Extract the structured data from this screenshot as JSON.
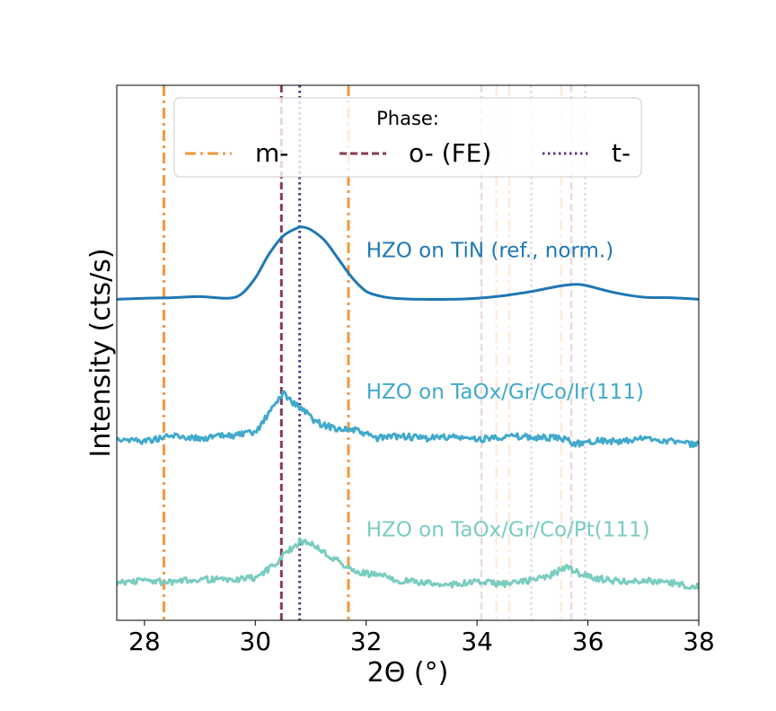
{
  "chart_data": {
    "type": "line",
    "xlabel": "2Θ (°)",
    "ylabel": "Intensity (cts/s)",
    "xlim": [
      27.5,
      38
    ],
    "ylim": [
      0,
      1
    ],
    "xticks": [
      "28",
      "30",
      "32",
      "34",
      "36",
      "38"
    ],
    "yticks": [],
    "grid": false,
    "legend": {
      "title": "Phase:",
      "position": "top-center",
      "entries": [
        {
          "label": "m-",
          "color": "#f5973a",
          "style": "dashdot"
        },
        {
          "label": "o- (FE)",
          "color": "#8b3a5a",
          "style": "dashed"
        },
        {
          "label": "t-",
          "color": "#5a3a82",
          "style": "dotted"
        }
      ]
    },
    "reference_lines": [
      {
        "phase": "m-",
        "x": 28.35,
        "strength": "strong",
        "color": "#f5973a",
        "style": "dashdot"
      },
      {
        "phase": "m-",
        "x": 31.68,
        "strength": "strong",
        "color": "#f5973a",
        "style": "dashdot"
      },
      {
        "phase": "m-",
        "x": 34.35,
        "strength": "weak",
        "color": "#f5973a",
        "style": "dashdot"
      },
      {
        "phase": "m-",
        "x": 34.58,
        "strength": "weak",
        "color": "#f5973a",
        "style": "dashdot"
      },
      {
        "phase": "m-",
        "x": 35.52,
        "strength": "weak",
        "color": "#f5973a",
        "style": "dashdot"
      },
      {
        "phase": "o- (FE)",
        "x": 30.47,
        "strength": "strong",
        "color": "#8b3a5a",
        "style": "dashed"
      },
      {
        "phase": "o- (FE)",
        "x": 34.08,
        "strength": "weak",
        "color": "#8b3a5a",
        "style": "dashed"
      },
      {
        "phase": "o- (FE)",
        "x": 35.7,
        "strength": "weak",
        "color": "#8b3a5a",
        "style": "dashed"
      },
      {
        "phase": "t-",
        "x": 30.8,
        "strength": "strong",
        "color": "#5a3a82",
        "style": "dotted"
      },
      {
        "phase": "t-",
        "x": 34.98,
        "strength": "weak",
        "color": "#5a3a82",
        "style": "dotted"
      },
      {
        "phase": "t-",
        "x": 35.95,
        "strength": "weak",
        "color": "#5a3a82",
        "style": "dotted"
      }
    ],
    "series": [
      {
        "name": "HZO on TiN (ref., norm.)",
        "color": "#1f77b4",
        "label_x": 32.0,
        "label_y": 0.69,
        "x": [
          27.5,
          28.0,
          28.5,
          29.0,
          29.5,
          29.75,
          30.0,
          30.25,
          30.5,
          30.75,
          30.85,
          31.0,
          31.25,
          31.5,
          31.75,
          32.0,
          32.25,
          32.5,
          33.0,
          33.5,
          34.0,
          34.5,
          35.0,
          35.5,
          35.8,
          36.0,
          36.5,
          37.0,
          37.5,
          38.0
        ],
        "y": [
          0.6,
          0.602,
          0.603,
          0.605,
          0.602,
          0.61,
          0.64,
          0.685,
          0.718,
          0.733,
          0.735,
          0.73,
          0.71,
          0.675,
          0.64,
          0.615,
          0.606,
          0.602,
          0.6,
          0.6,
          0.602,
          0.607,
          0.615,
          0.625,
          0.628,
          0.625,
          0.612,
          0.604,
          0.603,
          0.6
        ]
      },
      {
        "name": "HZO on TaOx/Gr/Co/Ir(111)",
        "color": "#41a9cc",
        "label_x": 32.0,
        "label_y": 0.425,
        "x": [
          27.5,
          28.0,
          28.5,
          29.0,
          29.5,
          30.0,
          30.2,
          30.4,
          30.5,
          30.7,
          30.9,
          31.1,
          31.4,
          31.8,
          32.2,
          32.6,
          33.0,
          33.5,
          34.0,
          34.5,
          35.0,
          35.5,
          35.8,
          36.2,
          36.6,
          37.0,
          37.5,
          38.0
        ],
        "y": [
          0.34,
          0.335,
          0.345,
          0.34,
          0.345,
          0.35,
          0.38,
          0.41,
          0.425,
          0.405,
          0.39,
          0.37,
          0.36,
          0.355,
          0.34,
          0.345,
          0.34,
          0.343,
          0.338,
          0.344,
          0.342,
          0.34,
          0.33,
          0.337,
          0.333,
          0.34,
          0.335,
          0.328
        ]
      },
      {
        "name": "HZO on TaOx/Gr/Co/Pt(111)",
        "color": "#7accc0",
        "label_x": 32.0,
        "label_y": 0.168,
        "x": [
          27.5,
          28.0,
          28.5,
          29.0,
          29.5,
          30.0,
          30.3,
          30.6,
          30.8,
          31.0,
          31.2,
          31.5,
          31.8,
          32.2,
          32.6,
          33.0,
          33.5,
          34.0,
          34.5,
          35.0,
          35.3,
          35.6,
          35.9,
          36.2,
          36.6,
          37.0,
          37.5,
          38.0
        ],
        "y": [
          0.07,
          0.075,
          0.07,
          0.078,
          0.075,
          0.08,
          0.1,
          0.13,
          0.147,
          0.145,
          0.13,
          0.11,
          0.09,
          0.085,
          0.075,
          0.07,
          0.067,
          0.072,
          0.068,
          0.075,
          0.082,
          0.1,
          0.085,
          0.078,
          0.072,
          0.075,
          0.07,
          0.062
        ]
      }
    ]
  }
}
